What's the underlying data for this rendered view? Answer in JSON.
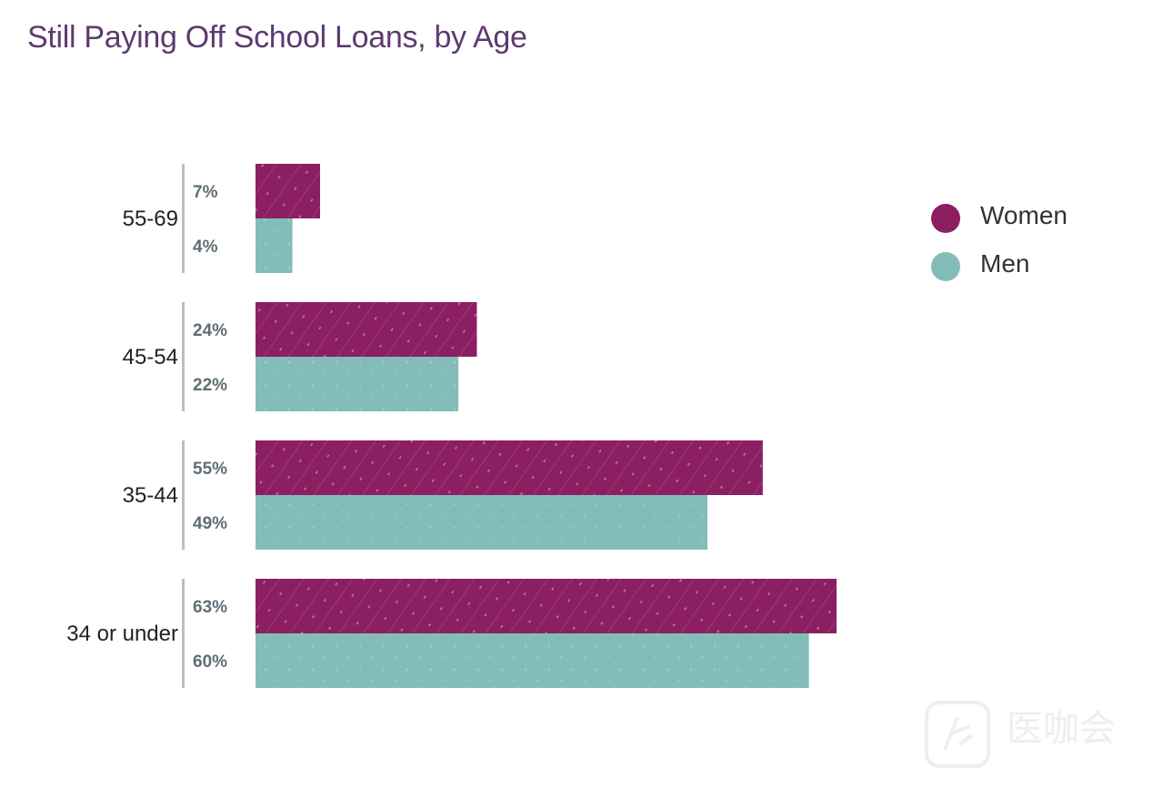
{
  "chart_data": {
    "type": "bar",
    "orientation": "horizontal",
    "title": "Still Paying Off School Loans, by Age",
    "categories": [
      "55-69",
      "45-54",
      "35-44",
      "34 or under"
    ],
    "series": [
      {
        "name": "Women",
        "values": [
          7,
          24,
          55,
          63
        ],
        "labels": [
          "7%",
          "24%",
          "55%",
          "63%"
        ],
        "color": "#8b1f62"
      },
      {
        "name": "Men",
        "values": [
          4,
          22,
          49,
          60
        ],
        "labels": [
          "4%",
          "22%",
          "49%",
          "60%"
        ],
        "color": "#84bcb8"
      }
    ],
    "xlim": [
      0,
      63
    ],
    "grid": false,
    "legend": "right"
  },
  "watermark": {
    "text": "医咖会"
  }
}
